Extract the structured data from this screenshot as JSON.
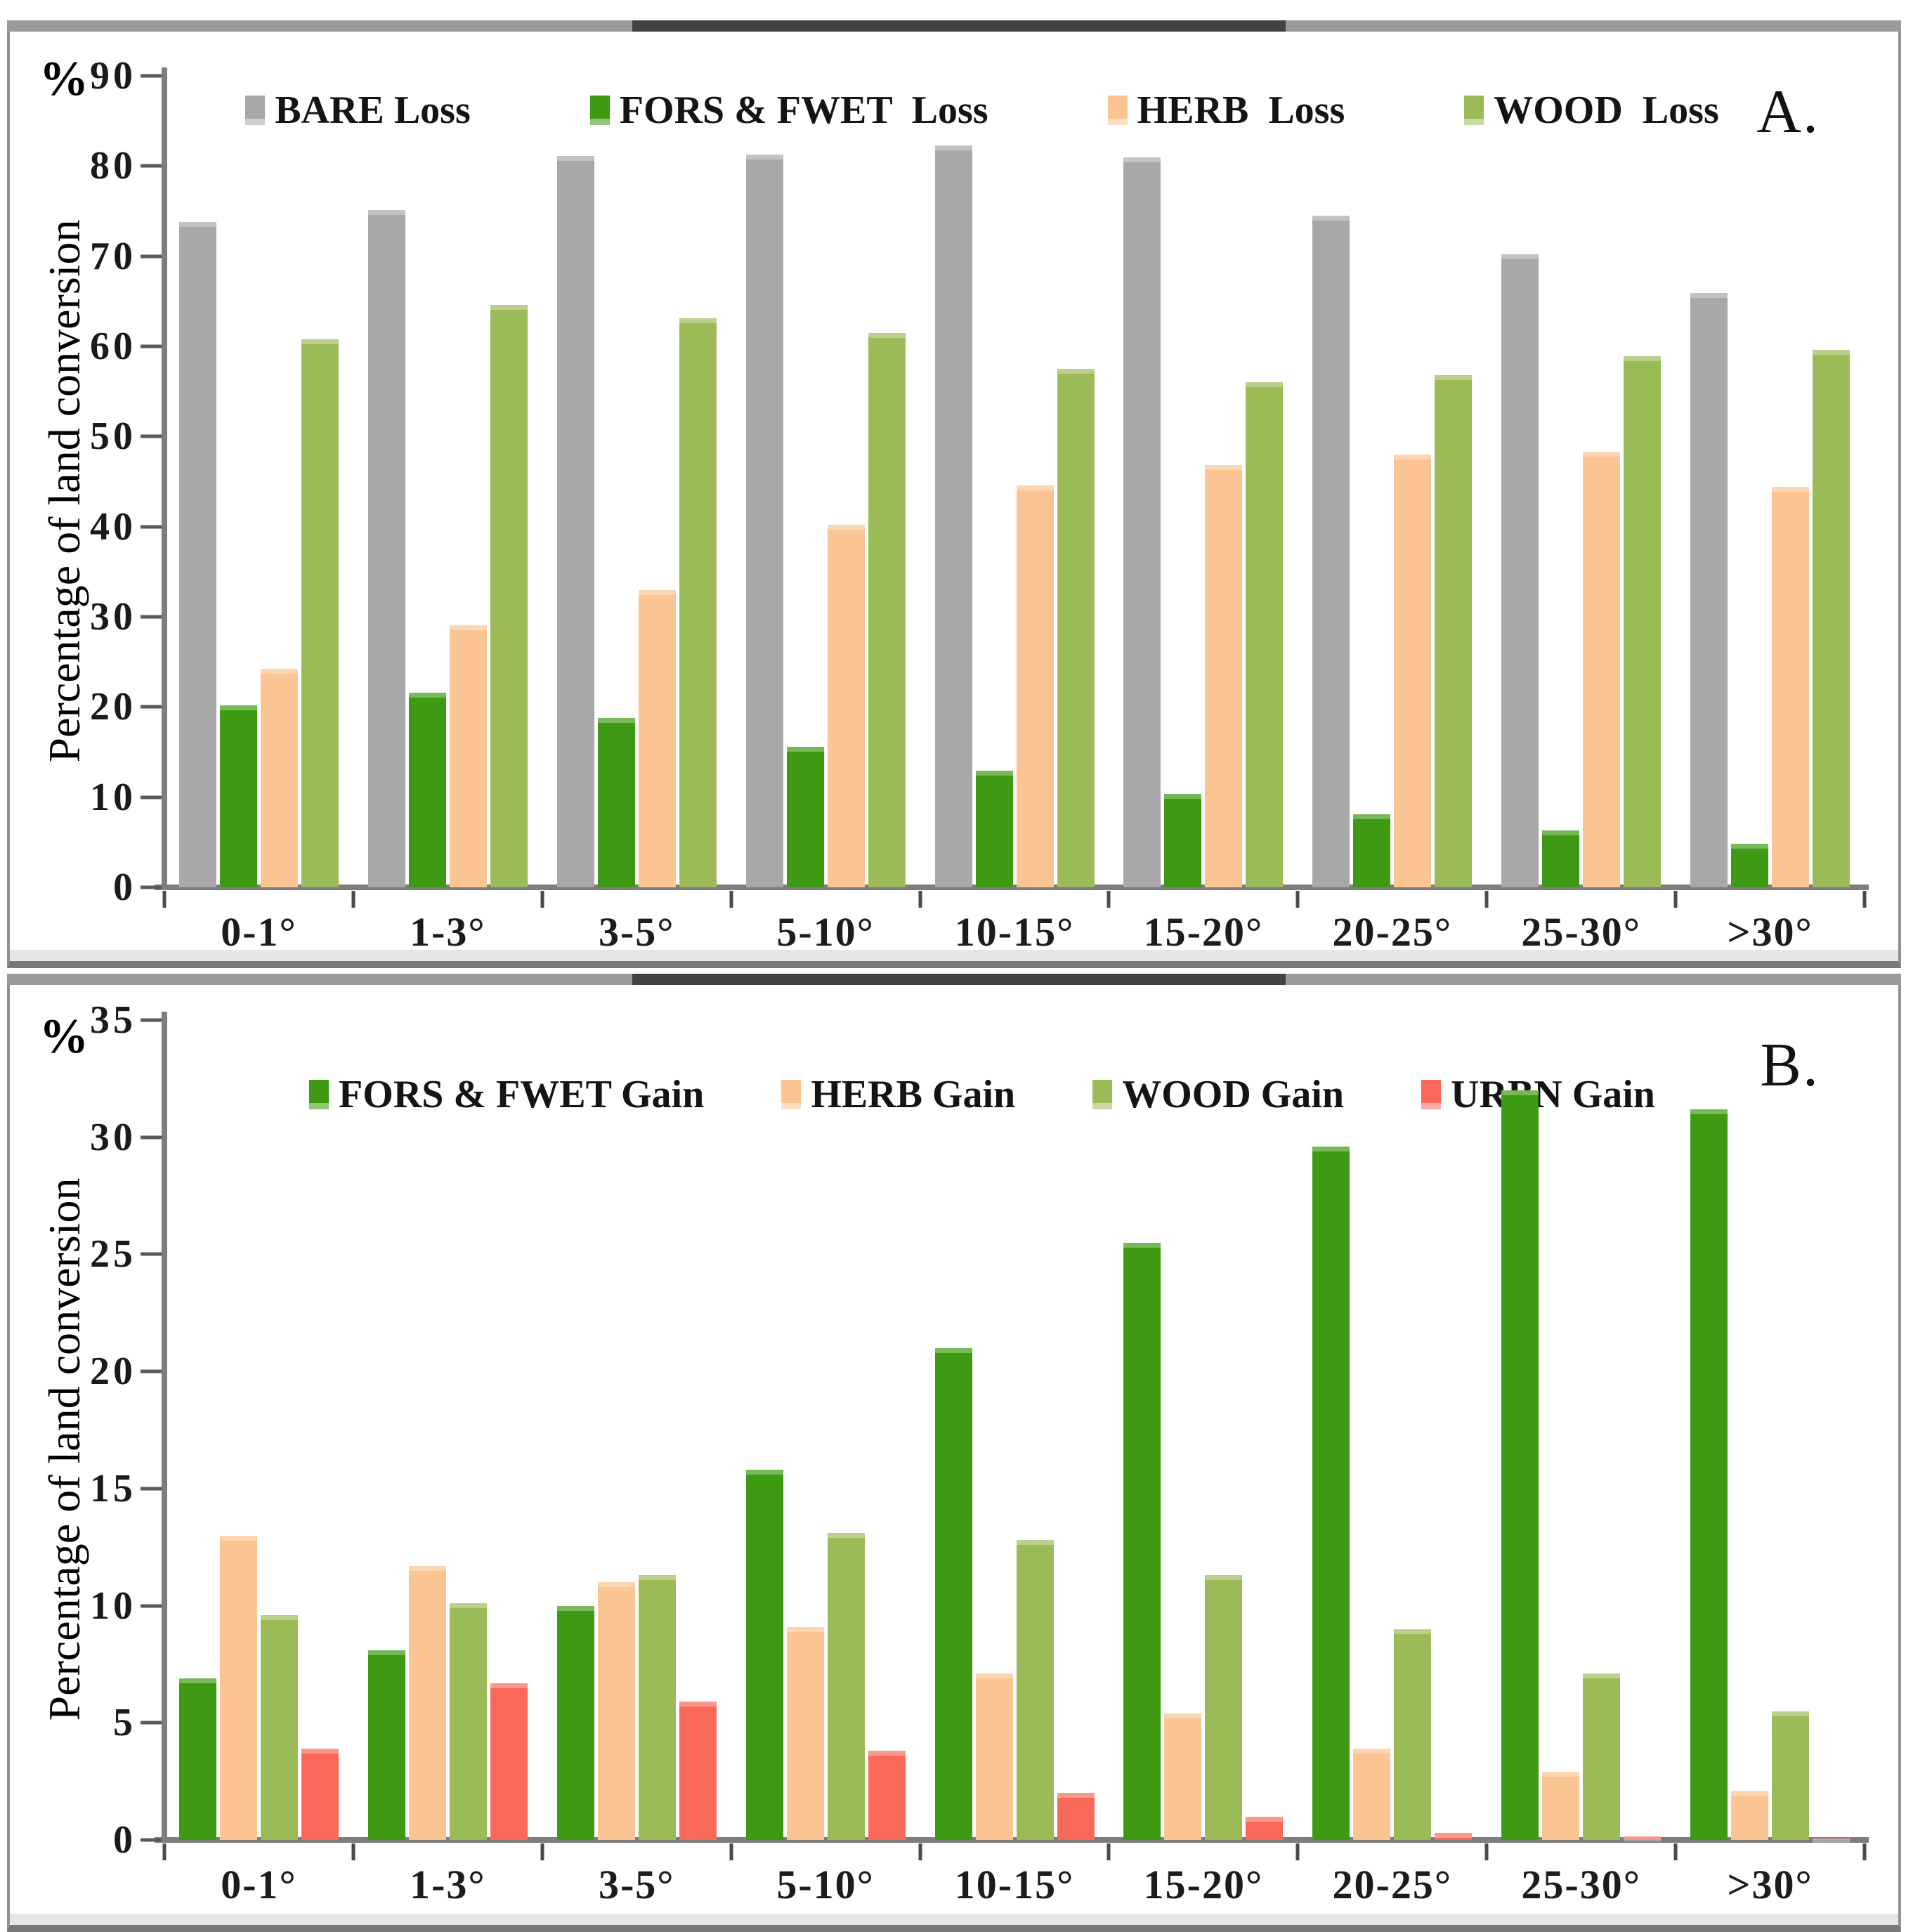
{
  "figure": {
    "background": "#ffffff",
    "border_color": "#909090",
    "top_band_color": "#9b9b9b",
    "top_band_dark_color": "#424242",
    "axis_color": "#7d7d7d"
  },
  "chart_data": [
    {
      "type": "bar",
      "panel_label": "A.",
      "percent_symbol": "%",
      "y_axis_title": "Percentage of land conversion",
      "y_max": 90,
      "y_tick_step": 10,
      "y_ticks": [
        90,
        80,
        70,
        60,
        50,
        40,
        30,
        20,
        10,
        0
      ],
      "grid": "off",
      "legend_position": "top-center",
      "categories": [
        "0-1°",
        "1-3°",
        "3-5°",
        "5-10°",
        "10-15°",
        "15-20°",
        "20-25°",
        "25-30°",
        ">30°"
      ],
      "series": [
        {
          "name": "BARE Loss",
          "color": "#a8a8a8",
          "values": [
            73.8,
            75.1,
            81.1,
            81.3,
            82.3,
            81.0,
            74.5,
            70.2,
            65.9
          ]
        },
        {
          "name": "FORS & FWET  Loss",
          "color": "#3d9a12",
          "values": [
            20.2,
            21.6,
            18.8,
            15.6,
            12.9,
            10.4,
            8.1,
            6.3,
            4.8
          ]
        },
        {
          "name": "HERB  Loss",
          "color": "#fbc493",
          "values": [
            24.2,
            29.1,
            33.0,
            40.2,
            44.6,
            46.8,
            48.0,
            48.3,
            44.4
          ]
        },
        {
          "name": "WOOD  Loss",
          "color": "#9bba58",
          "values": [
            60.8,
            64.6,
            63.1,
            61.5,
            57.5,
            56.0,
            56.8,
            58.9,
            59.6
          ]
        }
      ]
    },
    {
      "type": "bar",
      "panel_label": "B.",
      "percent_symbol": "%",
      "y_axis_title": "Percentage of land conversion",
      "y_max": 35,
      "y_tick_step": 5,
      "y_ticks": [
        35,
        30,
        25,
        20,
        15,
        10,
        5,
        0
      ],
      "grid": "off",
      "legend_position": "top-center",
      "categories": [
        "0-1°",
        "1-3°",
        "3-5°",
        "5-10°",
        "10-15°",
        "15-20°",
        "20-25°",
        "25-30°",
        ">30°"
      ],
      "series": [
        {
          "name": "FORS & FWET Gain",
          "color": "#3d9a12",
          "values": [
            6.9,
            8.1,
            10.0,
            15.8,
            21.0,
            25.5,
            29.6,
            32.0,
            31.2
          ]
        },
        {
          "name": "HERB Gain",
          "color": "#fbc493",
          "values": [
            13.0,
            11.7,
            11.0,
            9.1,
            7.1,
            5.4,
            3.9,
            2.9,
            2.1
          ]
        },
        {
          "name": "WOOD Gain",
          "color": "#9bba58",
          "values": [
            9.6,
            10.1,
            11.3,
            13.1,
            12.8,
            11.3,
            9.0,
            7.1,
            5.5
          ]
        },
        {
          "name": "URBN Gain",
          "color": "#f9695a",
          "values": [
            3.9,
            6.7,
            5.9,
            3.8,
            2.0,
            1.0,
            0.3,
            0.15,
            0.05
          ]
        }
      ]
    }
  ]
}
